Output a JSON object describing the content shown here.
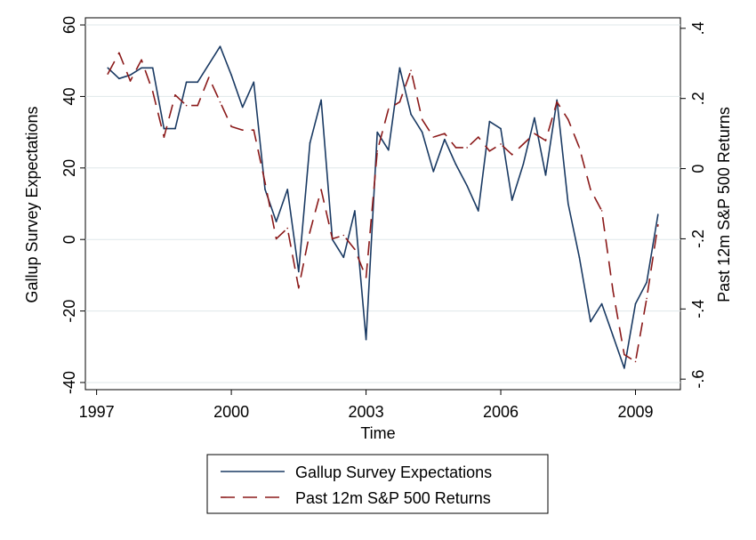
{
  "chart_data": {
    "type": "line",
    "xlabel": "Time",
    "ylabel_left": "Gallup Survey Expectations",
    "ylabel_right": "Past 12m S&P 500 Returns",
    "xlim": [
      1996.75,
      2010.0
    ],
    "ylim_left": [
      -42,
      62
    ],
    "ylim_right": [
      -0.63,
      0.43
    ],
    "x_ticks": [
      1997,
      2000,
      2003,
      2006,
      2009
    ],
    "x_tick_labels": [
      "1997",
      "2000",
      "2003",
      "2006",
      "2009"
    ],
    "y_left_ticks": [
      -40,
      -20,
      0,
      20,
      40,
      60
    ],
    "y_left_tick_labels": [
      "-40",
      "-20",
      "0",
      "20",
      "40",
      "60"
    ],
    "y_right_ticks": [
      -0.6,
      -0.4,
      -0.2,
      0,
      0.2,
      0.4
    ],
    "y_right_tick_labels": [
      "-.6",
      "-.4",
      "-.2",
      "0",
      ".2",
      ".4"
    ],
    "grid": true,
    "legend_position": "bottom",
    "series": [
      {
        "name": "Gallup Survey Expectations",
        "axis": "left",
        "color": "#1a3a63",
        "style": "solid",
        "x": [
          1997.25,
          1997.5,
          1997.75,
          1998.0,
          1998.25,
          1998.5,
          1998.75,
          1999.0,
          1999.25,
          1999.5,
          1999.75,
          2000.0,
          2000.25,
          2000.5,
          2000.75,
          2001.0,
          2001.25,
          2001.5,
          2001.75,
          2002.0,
          2002.25,
          2002.5,
          2002.75,
          2003.0,
          2003.25,
          2003.5,
          2003.75,
          2004.0,
          2004.25,
          2004.5,
          2004.75,
          2005.0,
          2005.25,
          2005.5,
          2005.75,
          2006.0,
          2006.25,
          2006.5,
          2006.75,
          2007.0,
          2007.25,
          2007.5,
          2007.75,
          2008.0,
          2008.25,
          2008.5,
          2008.75,
          2009.0,
          2009.25,
          2009.5
        ],
        "values": [
          48,
          45,
          46,
          48,
          48,
          31,
          31,
          44,
          44,
          49,
          54,
          46,
          37,
          44,
          14,
          5,
          14,
          -9,
          27,
          39,
          0,
          -5,
          8,
          -28,
          30,
          25,
          48,
          35,
          30,
          19,
          28,
          21,
          15,
          8,
          33,
          31,
          11,
          21,
          34,
          18,
          39,
          10,
          -5,
          -23,
          -18,
          -27,
          -36,
          -18,
          -12,
          7
        ]
      },
      {
        "name": "Past 12m S&P 500 Returns",
        "axis": "right",
        "color": "#8b1a1a",
        "style": "dashed",
        "x": [
          1997.25,
          1997.5,
          1997.75,
          1998.0,
          1998.25,
          1998.5,
          1998.75,
          1999.0,
          1999.25,
          1999.5,
          1999.75,
          2000.0,
          2000.25,
          2000.5,
          2000.75,
          2001.0,
          2001.25,
          2001.5,
          2001.75,
          2002.0,
          2002.25,
          2002.5,
          2002.75,
          2003.0,
          2003.25,
          2003.5,
          2003.75,
          2004.0,
          2004.25,
          2004.5,
          2004.75,
          2005.0,
          2005.25,
          2005.5,
          2005.75,
          2006.0,
          2006.25,
          2006.5,
          2006.75,
          2007.0,
          2007.25,
          2007.5,
          2007.75,
          2008.0,
          2008.25,
          2008.5,
          2008.75,
          2009.0,
          2009.25,
          2009.5
        ],
        "values": [
          0.27,
          0.33,
          0.25,
          0.31,
          0.22,
          0.09,
          0.21,
          0.18,
          0.18,
          0.26,
          0.19,
          0.12,
          0.11,
          0.11,
          -0.04,
          -0.2,
          -0.17,
          -0.34,
          -0.18,
          -0.06,
          -0.2,
          -0.19,
          -0.23,
          -0.31,
          0.05,
          0.17,
          0.19,
          0.28,
          0.14,
          0.09,
          0.1,
          0.06,
          0.06,
          0.09,
          0.05,
          0.07,
          0.04,
          0.07,
          0.1,
          0.08,
          0.19,
          0.14,
          0.06,
          -0.06,
          -0.12,
          -0.35,
          -0.53,
          -0.55,
          -0.37,
          -0.16
        ]
      }
    ]
  }
}
